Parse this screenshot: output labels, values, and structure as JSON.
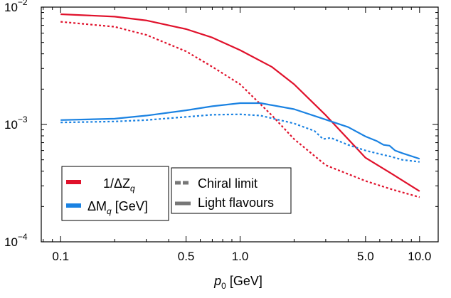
{
  "chart_data": {
    "type": "line",
    "title": "",
    "xlabel": {
      "var": "p",
      "sub": "0",
      "unit": " [GeV]"
    },
    "ylabel": "",
    "x_scale": "log",
    "y_scale": "log",
    "xlim": [
      0.078,
      12.7
    ],
    "ylim": [
      0.0001,
      0.01
    ],
    "x_ticks": [
      {
        "value": 0.1,
        "label": "0.1"
      },
      {
        "value": 0.5,
        "label": "0.5"
      },
      {
        "value": 1.0,
        "label": "1.0"
      },
      {
        "value": 5.0,
        "label": "5.0"
      },
      {
        "value": 10.0,
        "label": "10.0"
      }
    ],
    "y_ticks": [
      {
        "value": 0.01,
        "base": "10",
        "exp": "−2"
      },
      {
        "value": 0.001,
        "base": "10",
        "exp": "−3"
      },
      {
        "value": 0.0001,
        "base": "10",
        "exp": "−4"
      }
    ],
    "grid": false,
    "legend_placement": "bottom-left",
    "legends": {
      "quantities": [
        {
          "text": "1/ΔZ",
          "sub": "q",
          "unit": "",
          "color": "#e0112b"
        },
        {
          "text": "ΔM",
          "sub": "q",
          "unit": " [GeV]",
          "color": "#1a82e2"
        }
      ],
      "styles": [
        {
          "text": "Chiral limit",
          "dash": "dashed",
          "color": "#777777"
        },
        {
          "text": "Light flavours",
          "dash": "solid",
          "color": "#777777"
        }
      ]
    },
    "series": [
      {
        "quantity": "1/ΔZ_q",
        "style": "Light flavours",
        "color": "#e0112b",
        "dash": "solid",
        "x": [
          0.1,
          0.2,
          0.3,
          0.5,
          0.7,
          1.0,
          1.5,
          2.0,
          3.0,
          5.0,
          7.0,
          10.0
        ],
        "y": [
          0.0087,
          0.0083,
          0.0077,
          0.0065,
          0.0055,
          0.0043,
          0.0031,
          0.0022,
          0.0012,
          0.00052,
          0.00038,
          0.00027
        ]
      },
      {
        "quantity": "1/ΔZ_q",
        "style": "Chiral limit",
        "color": "#e0112b",
        "dash": "dashed",
        "x": [
          0.1,
          0.2,
          0.3,
          0.5,
          0.7,
          1.0,
          1.5,
          2.0,
          3.0,
          5.0,
          7.0,
          10.0
        ],
        "y": [
          0.0075,
          0.0068,
          0.0058,
          0.0042,
          0.0031,
          0.0022,
          0.0012,
          0.00075,
          0.00045,
          0.00033,
          0.00028,
          0.00024
        ]
      },
      {
        "quantity": "ΔM_q",
        "style": "Light flavours",
        "color": "#1a82e2",
        "dash": "solid",
        "x": [
          0.1,
          0.2,
          0.3,
          0.5,
          0.7,
          1.0,
          1.3,
          2.0,
          3.0,
          4.0,
          5.0,
          5.8,
          6.3,
          6.8,
          7.3,
          8.0,
          10.0
        ],
        "y": [
          0.00109,
          0.00112,
          0.00119,
          0.00132,
          0.00143,
          0.00152,
          0.00152,
          0.00135,
          0.0011,
          0.00095,
          0.00079,
          0.00072,
          0.00067,
          0.00066,
          0.0006,
          0.00057,
          0.00051
        ]
      },
      {
        "quantity": "ΔM_q",
        "style": "Chiral limit",
        "color": "#1a82e2",
        "dash": "dashed",
        "x": [
          0.1,
          0.2,
          0.3,
          0.5,
          0.7,
          1.0,
          1.3,
          2.0,
          2.6,
          2.9,
          3.2,
          4.0,
          5.0,
          6.0,
          7.0,
          8.0,
          10.0
        ],
        "y": [
          0.00104,
          0.00106,
          0.00109,
          0.00116,
          0.00121,
          0.00122,
          0.00119,
          0.00102,
          0.00088,
          0.00075,
          0.00077,
          0.00067,
          0.0006,
          0.00056,
          0.00053,
          0.0005,
          0.00048
        ]
      }
    ]
  }
}
